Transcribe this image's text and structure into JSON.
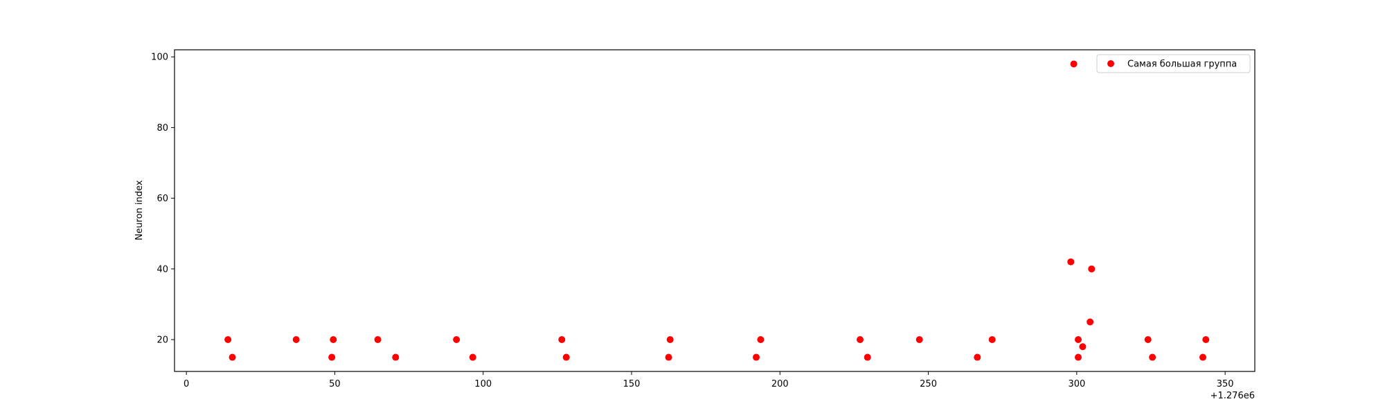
{
  "chart_data": {
    "type": "scatter",
    "title": "",
    "xlabel": "",
    "ylabel": "Neuron index",
    "x_offset_label": "+1.276e6",
    "xlim": [
      -4,
      360
    ],
    "ylim": [
      11,
      102
    ],
    "x_ticks": [
      0,
      50,
      100,
      150,
      200,
      250,
      300,
      350
    ],
    "y_ticks": [
      20,
      40,
      60,
      80,
      100
    ],
    "x_tick_labels": [
      "0",
      "50",
      "100",
      "150",
      "200",
      "250",
      "300",
      "350"
    ],
    "y_tick_labels": [
      "20",
      "40",
      "60",
      "80",
      "100"
    ],
    "grid": false,
    "legend_position": "top-right",
    "series": [
      {
        "name": "Самая большая группа",
        "color": "#ff0000",
        "marker": "circle",
        "points": [
          {
            "x": 14,
            "y": 20
          },
          {
            "x": 15.5,
            "y": 15
          },
          {
            "x": 37,
            "y": 20
          },
          {
            "x": 49,
            "y": 15
          },
          {
            "x": 49.5,
            "y": 20
          },
          {
            "x": 64.5,
            "y": 20
          },
          {
            "x": 70.5,
            "y": 15
          },
          {
            "x": 91,
            "y": 20
          },
          {
            "x": 96.5,
            "y": 15
          },
          {
            "x": 126.5,
            "y": 20
          },
          {
            "x": 128,
            "y": 15
          },
          {
            "x": 162.5,
            "y": 15
          },
          {
            "x": 163,
            "y": 20
          },
          {
            "x": 192,
            "y": 15
          },
          {
            "x": 193.5,
            "y": 20
          },
          {
            "x": 227,
            "y": 20
          },
          {
            "x": 229.5,
            "y": 15
          },
          {
            "x": 247,
            "y": 20
          },
          {
            "x": 266.5,
            "y": 15
          },
          {
            "x": 271.5,
            "y": 20
          },
          {
            "x": 298,
            "y": 42
          },
          {
            "x": 299,
            "y": 98
          },
          {
            "x": 300.5,
            "y": 20
          },
          {
            "x": 300.5,
            "y": 15
          },
          {
            "x": 302,
            "y": 18
          },
          {
            "x": 304.5,
            "y": 25
          },
          {
            "x": 305,
            "y": 40
          },
          {
            "x": 324,
            "y": 20
          },
          {
            "x": 325.5,
            "y": 15
          },
          {
            "x": 342.5,
            "y": 15
          },
          {
            "x": 343.5,
            "y": 20
          }
        ]
      }
    ]
  }
}
